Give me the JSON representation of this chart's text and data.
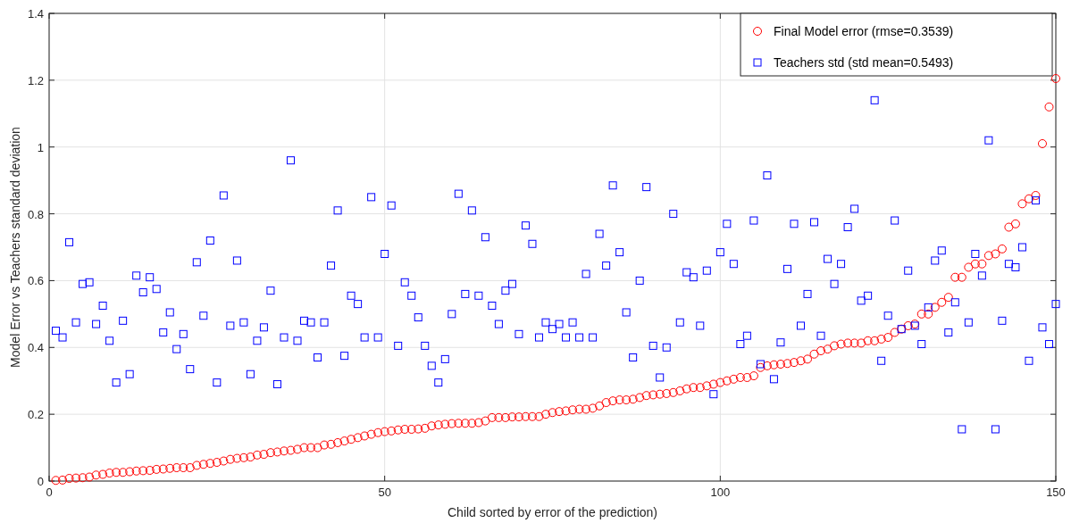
{
  "chart_data": {
    "type": "scatter",
    "xlabel": "Child sorted by error of the prediction)",
    "ylabel": "Model Error vs Teachers standard deviation",
    "x": [
      1,
      2,
      3,
      4,
      5,
      6,
      7,
      8,
      9,
      10,
      11,
      12,
      13,
      14,
      15,
      16,
      17,
      18,
      19,
      20,
      21,
      22,
      23,
      24,
      25,
      26,
      27,
      28,
      29,
      30,
      31,
      32,
      33,
      34,
      35,
      36,
      37,
      38,
      39,
      40,
      41,
      42,
      43,
      44,
      45,
      46,
      47,
      48,
      49,
      50,
      51,
      52,
      53,
      54,
      55,
      56,
      57,
      58,
      59,
      60,
      61,
      62,
      63,
      64,
      65,
      66,
      67,
      68,
      69,
      70,
      71,
      72,
      73,
      74,
      75,
      76,
      77,
      78,
      79,
      80,
      81,
      82,
      83,
      84,
      85,
      86,
      87,
      88,
      89,
      90,
      91,
      92,
      93,
      94,
      95,
      96,
      97,
      98,
      99,
      100,
      101,
      102,
      103,
      104,
      105,
      106,
      107,
      108,
      109,
      110,
      111,
      112,
      113,
      114,
      115,
      116,
      117,
      118,
      119,
      120,
      121,
      122,
      123,
      124,
      125,
      126,
      127,
      128,
      129,
      130,
      131,
      132,
      133,
      134,
      135,
      136,
      137,
      138,
      139,
      140,
      141,
      142,
      143,
      144,
      145,
      146,
      147,
      148,
      149,
      150
    ],
    "xlim": [
      0,
      150
    ],
    "xticks": [
      0,
      50,
      100,
      150
    ],
    "ylim": [
      0,
      1.4
    ],
    "yticks": [
      0,
      0.2,
      0.4,
      0.6,
      0.8,
      1,
      1.2,
      1.4
    ],
    "grid": true,
    "legend": "top right",
    "series": [
      {
        "name": "Final Model error (rmse=0.3539)",
        "color": "#ff0000",
        "marker": "circle",
        "values": [
          0.002,
          0.003,
          0.008,
          0.009,
          0.01,
          0.012,
          0.018,
          0.02,
          0.024,
          0.026,
          0.026,
          0.028,
          0.03,
          0.031,
          0.032,
          0.035,
          0.036,
          0.038,
          0.04,
          0.04,
          0.04,
          0.047,
          0.05,
          0.053,
          0.056,
          0.06,
          0.065,
          0.068,
          0.07,
          0.072,
          0.078,
          0.08,
          0.085,
          0.087,
          0.09,
          0.092,
          0.095,
          0.1,
          0.1,
          0.1,
          0.108,
          0.11,
          0.115,
          0.12,
          0.125,
          0.13,
          0.135,
          0.14,
          0.145,
          0.148,
          0.15,
          0.153,
          0.155,
          0.155,
          0.156,
          0.158,
          0.165,
          0.168,
          0.17,
          0.172,
          0.173,
          0.173,
          0.173,
          0.175,
          0.18,
          0.19,
          0.19,
          0.19,
          0.192,
          0.192,
          0.193,
          0.193,
          0.193,
          0.2,
          0.205,
          0.208,
          0.21,
          0.213,
          0.215,
          0.215,
          0.218,
          0.225,
          0.235,
          0.24,
          0.243,
          0.243,
          0.245,
          0.25,
          0.256,
          0.258,
          0.26,
          0.262,
          0.265,
          0.27,
          0.276,
          0.28,
          0.28,
          0.285,
          0.29,
          0.295,
          0.3,
          0.305,
          0.31,
          0.31,
          0.315,
          0.34,
          0.345,
          0.348,
          0.35,
          0.352,
          0.355,
          0.36,
          0.365,
          0.38,
          0.39,
          0.395,
          0.405,
          0.41,
          0.413,
          0.413,
          0.413,
          0.42,
          0.42,
          0.425,
          0.43,
          0.445,
          0.455,
          0.465,
          0.47,
          0.5,
          0.5,
          0.52,
          0.535,
          0.55,
          0.61,
          0.61,
          0.64,
          0.65,
          0.65,
          0.675,
          0.68,
          0.695,
          0.76,
          0.77,
          0.83,
          0.845,
          0.855,
          1.01,
          1.12,
          1.205
        ]
      },
      {
        "name": "Teachers std (std mean=0.5493)",
        "color": "#0000ff",
        "marker": "square",
        "values": [
          0.45,
          0.43,
          0.715,
          0.475,
          0.59,
          0.595,
          0.47,
          0.525,
          0.42,
          0.295,
          0.48,
          0.32,
          0.615,
          0.565,
          0.61,
          0.575,
          0.445,
          0.505,
          0.395,
          0.44,
          0.335,
          0.655,
          0.495,
          0.72,
          0.295,
          0.855,
          0.465,
          0.66,
          0.475,
          0.32,
          0.42,
          0.46,
          0.57,
          0.29,
          0.43,
          0.96,
          0.42,
          0.48,
          0.475,
          0.37,
          0.475,
          0.645,
          0.81,
          0.375,
          0.555,
          0.53,
          0.43,
          0.85,
          0.43,
          0.68,
          0.825,
          0.405,
          0.595,
          0.555,
          0.49,
          0.405,
          0.345,
          0.295,
          0.365,
          0.5,
          0.86,
          0.56,
          0.81,
          0.555,
          0.73,
          0.525,
          0.47,
          0.57,
          0.59,
          0.44,
          0.765,
          0.71,
          0.43,
          0.475,
          0.455,
          0.47,
          0.43,
          0.475,
          0.43,
          0.62,
          0.43,
          0.74,
          0.645,
          0.885,
          0.685,
          0.505,
          0.37,
          0.6,
          0.88,
          0.405,
          0.31,
          0.4,
          0.8,
          0.475,
          0.625,
          0.61,
          0.465,
          0.63,
          0.26,
          0.685,
          0.77,
          0.65,
          0.41,
          0.435,
          0.78,
          0.35,
          0.915,
          0.305,
          0.415,
          0.635,
          0.77,
          0.465,
          0.56,
          0.775,
          0.435,
          0.665,
          0.59,
          0.65,
          0.76,
          0.815,
          0.54,
          0.555,
          1.14,
          0.36,
          0.495,
          0.78,
          0.455,
          0.63,
          0.465,
          0.41,
          0.52,
          0.66,
          0.69,
          0.445,
          0.535,
          0.155,
          0.475,
          0.68,
          0.615,
          1.02,
          0.155,
          0.48,
          0.65,
          0.64,
          0.7,
          0.36,
          0.84,
          0.46,
          0.41,
          0.53
        ]
      }
    ]
  }
}
